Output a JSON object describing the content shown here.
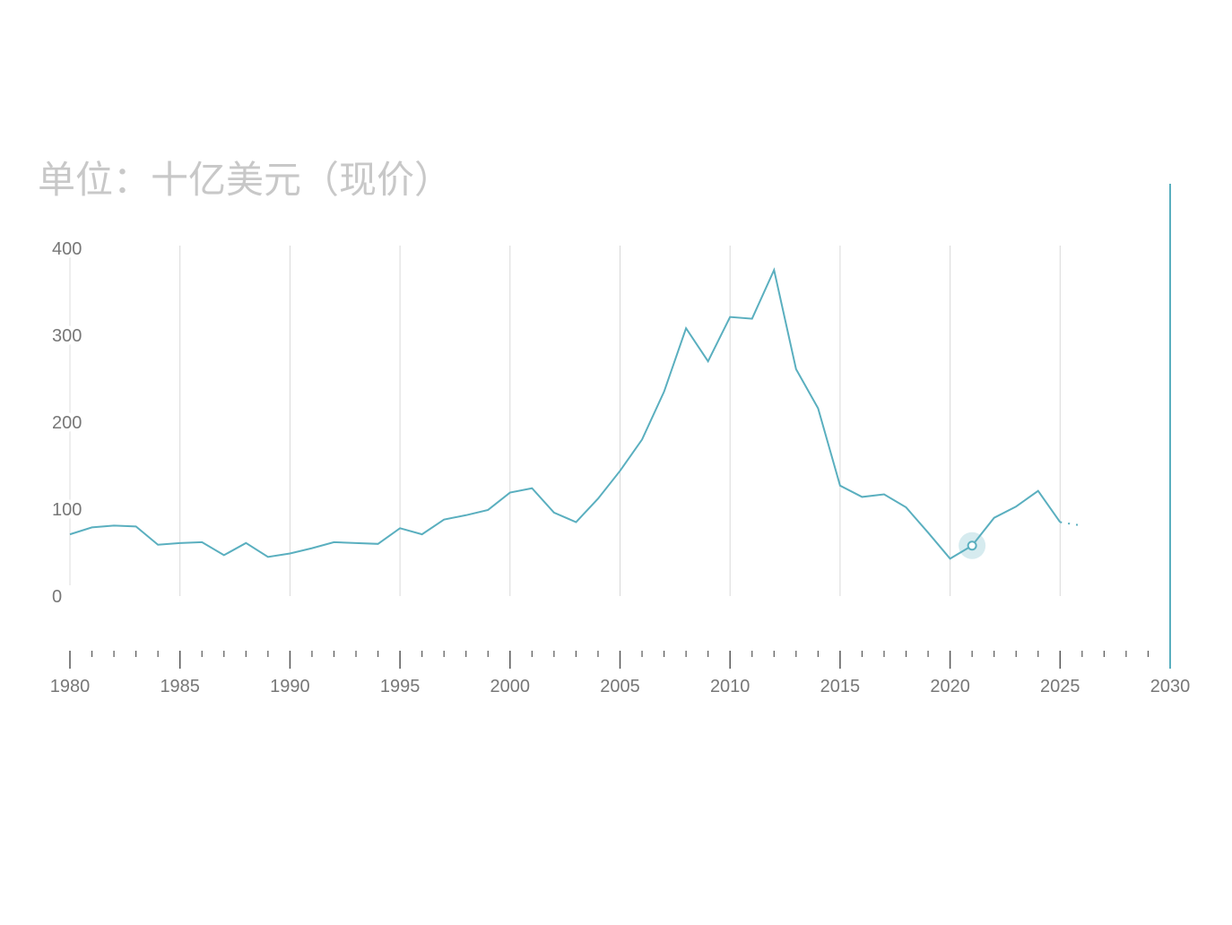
{
  "chart_data": {
    "type": "line",
    "title": "单位：十亿美元（现价）",
    "x": [
      1980,
      1981,
      1982,
      1983,
      1984,
      1985,
      1986,
      1987,
      1988,
      1989,
      1990,
      1991,
      1992,
      1993,
      1994,
      1995,
      1996,
      1997,
      1998,
      1999,
      2000,
      2001,
      2002,
      2003,
      2004,
      2005,
      2006,
      2007,
      2008,
      2009,
      2010,
      2011,
      2012,
      2013,
      2014,
      2015,
      2016,
      2017,
      2018,
      2019,
      2020,
      2021,
      2022,
      2023,
      2024,
      2025,
      2026
    ],
    "series": [
      {
        "color": "#5aafbf",
        "values": [
          71,
          79,
          81,
          80,
          59,
          61,
          62,
          47,
          61,
          45,
          49,
          55,
          62,
          61,
          60,
          78,
          71,
          88,
          93,
          99,
          119,
          124,
          96,
          85,
          112,
          144,
          180,
          235,
          308,
          270,
          321,
          319,
          375,
          261,
          216,
          127,
          114,
          117,
          102,
          73,
          43,
          58,
          90,
          103,
          121,
          85,
          81
        ]
      }
    ],
    "projection_from": 2025,
    "highlight_x": 2021,
    "xlim": [
      1980,
      2030
    ],
    "xticks": [
      1980,
      1985,
      1990,
      1995,
      2000,
      2005,
      2010,
      2015,
      2020,
      2025,
      2030
    ],
    "xminorticks": [
      1981,
      1982,
      1983,
      1984,
      1986,
      1987,
      1988,
      1989,
      1991,
      1992,
      1993,
      1994,
      1996,
      1997,
      1998,
      1999,
      2001,
      2002,
      2003,
      2004,
      2006,
      2007,
      2008,
      2009,
      2011,
      2012,
      2013,
      2014,
      2016,
      2017,
      2018,
      2019,
      2021,
      2022,
      2023,
      2024,
      2026,
      2027,
      2028,
      2029
    ],
    "ylim": [
      0,
      400
    ],
    "yticks": [
      0,
      100,
      200,
      300,
      400
    ],
    "grid": true
  }
}
